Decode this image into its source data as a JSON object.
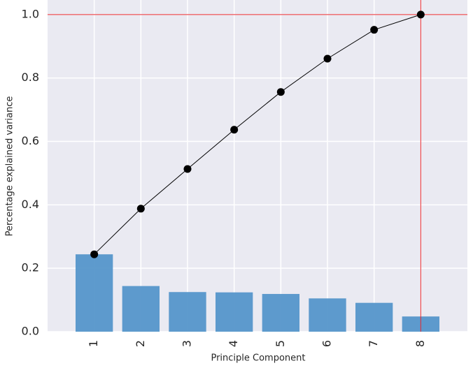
{
  "chart_data": {
    "type": "bar",
    "x_label": "Principle Component",
    "y_label": "Percentage explained variance",
    "x": [
      1,
      2,
      3,
      4,
      5,
      6,
      7,
      8
    ],
    "series": [
      {
        "type": "bar",
        "color": "#5596ca",
        "values": [
          0.244,
          0.144,
          0.125,
          0.124,
          0.119,
          0.105,
          0.091,
          0.048
        ]
      },
      {
        "type": "line",
        "color": "#000000",
        "values": [
          0.244,
          0.388,
          0.513,
          0.637,
          0.756,
          0.861,
          0.952,
          1.0
        ]
      }
    ],
    "xlim": [
      0,
      9
    ],
    "xticks": [
      1,
      2,
      3,
      4,
      5,
      6,
      7,
      8
    ],
    "ylim": [
      0,
      1.046
    ],
    "yticks": [
      {
        "value": 0,
        "label": "0.0"
      },
      0.2,
      0.4,
      0.6,
      0.8,
      {
        "value": 1,
        "label": "1.0"
      }
    ],
    "hlines": [
      1.0
    ],
    "vlines": [
      8
    ],
    "reference_color": "#e8252b",
    "grid": true
  }
}
